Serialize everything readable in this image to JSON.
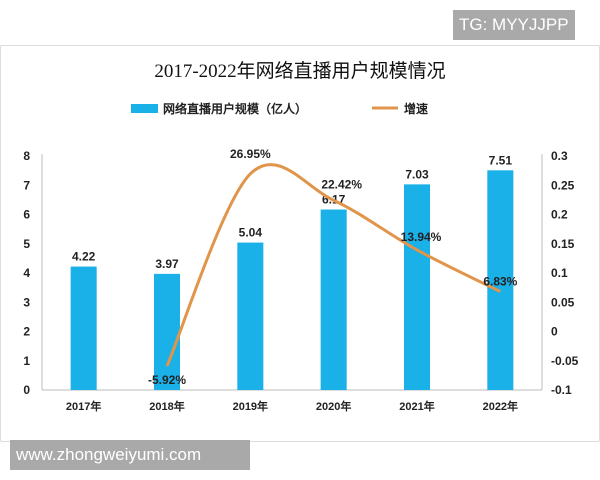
{
  "watermarks": {
    "top": "TG: MYYJJPP",
    "bottom": "www.zhongweiyumi.com"
  },
  "chart_data": {
    "type": "bar+line",
    "title": "2017-2022年网络直播用户规模情况",
    "categories": [
      "2017年",
      "2018年",
      "2019年",
      "2020年",
      "2021年",
      "2022年"
    ],
    "series": [
      {
        "name": "网络直播用户规模（亿人）",
        "type": "bar",
        "axis": "left",
        "color": "#1ab0e8",
        "values": [
          4.22,
          3.97,
          5.04,
          6.17,
          7.03,
          7.51
        ],
        "labels": [
          "4.22",
          "3.97",
          "5.04",
          "6.17",
          "7.03",
          "7.51"
        ]
      },
      {
        "name": "增速",
        "type": "line",
        "axis": "right",
        "color": "#e0954a",
        "values": [
          null,
          -0.0592,
          0.2695,
          0.2242,
          0.1394,
          0.0683
        ],
        "labels": [
          "",
          "-5.92%",
          "26.95%",
          "22.42%",
          "13.94%",
          "6.83%"
        ]
      }
    ],
    "y_left": {
      "min": 0,
      "max": 8,
      "ticks": [
        "0",
        "1",
        "2",
        "3",
        "4",
        "5",
        "6",
        "7",
        "8"
      ]
    },
    "y_right": {
      "min": -0.1,
      "max": 0.3,
      "ticks": [
        "-0.1",
        "-0.05",
        "0",
        "0.05",
        "0.1",
        "0.15",
        "0.2",
        "0.25",
        "0.3"
      ]
    },
    "legend": "top",
    "grid": false
  }
}
